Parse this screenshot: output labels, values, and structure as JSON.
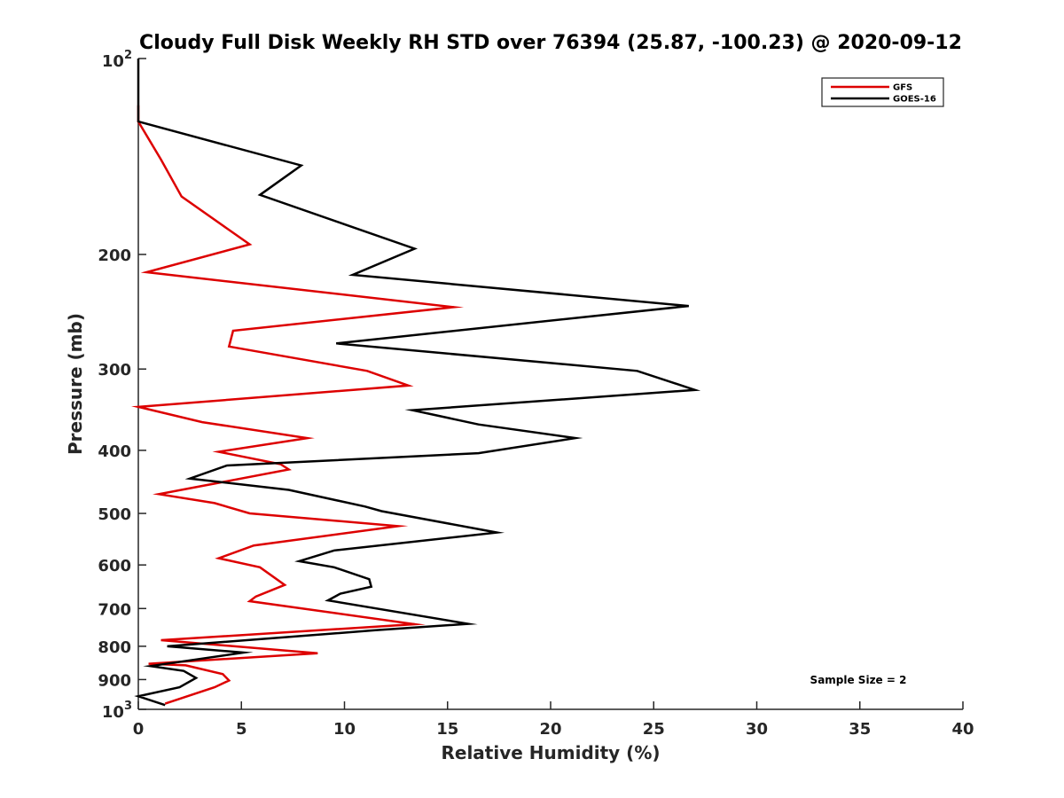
{
  "chart_data": {
    "type": "line",
    "title": "Cloudy Full Disk Weekly RH STD over 76394 (25.87, -100.23) @ 2020-09-12",
    "xlabel": "Relative Humidity (%)",
    "ylabel": "Pressure (mb)",
    "xlim": [
      0,
      40
    ],
    "ylim": [
      100,
      1000
    ],
    "yscale": "log",
    "y_reversed": true,
    "grid": false,
    "legend": "top-right",
    "x_ticks": [
      "0",
      "5",
      "10",
      "15",
      "20",
      "25",
      "30",
      "35",
      "40"
    ],
    "y_ticks": [
      "200",
      "300",
      "400",
      "500",
      "600",
      "700",
      "800",
      "900"
    ],
    "y_tick_values": [
      200,
      300,
      400,
      500,
      600,
      700,
      800,
      900
    ],
    "y_top_label": {
      "base": "10",
      "exp": "2"
    },
    "y_bottom_label": {
      "base": "10",
      "exp": "3"
    },
    "annotation": "Sample Size = 2",
    "series": [
      {
        "name": "GFS",
        "color": "#dd0000",
        "points": [
          [
            0,
            118
          ],
          [
            0,
            125
          ],
          [
            1.1,
            143
          ],
          [
            2.1,
            163
          ],
          [
            5.4,
            193
          ],
          [
            0.4,
            213
          ],
          [
            15.3,
            241
          ],
          [
            4.6,
            262
          ],
          [
            4.4,
            277
          ],
          [
            11.1,
            302
          ],
          [
            13.1,
            318
          ],
          [
            0,
            343
          ],
          [
            3.1,
            362
          ],
          [
            8.2,
            383
          ],
          [
            3.9,
            402
          ],
          [
            6.9,
            420
          ],
          [
            7.3,
            428
          ],
          [
            1.0,
            467
          ],
          [
            3.7,
            482
          ],
          [
            5.4,
            500
          ],
          [
            12.6,
            523
          ],
          [
            5.6,
            560
          ],
          [
            3.9,
            586
          ],
          [
            5.9,
            605
          ],
          [
            7.1,
            644
          ],
          [
            5.7,
            671
          ],
          [
            5.4,
            682
          ],
          [
            13.4,
            740
          ],
          [
            1.1,
            783
          ],
          [
            8.7,
            820
          ],
          [
            0.5,
            851
          ],
          [
            2.3,
            856
          ],
          [
            4.1,
            883
          ],
          [
            4.4,
            903
          ],
          [
            3.7,
            925
          ],
          [
            1.3,
            980
          ]
        ]
      },
      {
        "name": "GOES-16",
        "color": "#000000",
        "points": [
          [
            0,
            100
          ],
          [
            0,
            125
          ],
          [
            7.9,
            146
          ],
          [
            5.9,
            162
          ],
          [
            13.4,
            196
          ],
          [
            10.4,
            215
          ],
          [
            26.7,
            240
          ],
          [
            9.6,
            274
          ],
          [
            24.2,
            302
          ],
          [
            27.0,
            323
          ],
          [
            13.3,
            347
          ],
          [
            16.5,
            365
          ],
          [
            21.2,
            383
          ],
          [
            16.5,
            404
          ],
          [
            4.3,
            422
          ],
          [
            2.5,
            442
          ],
          [
            7.3,
            460
          ],
          [
            11.0,
            488
          ],
          [
            11.8,
            496
          ],
          [
            17.4,
            535
          ],
          [
            9.5,
            570
          ],
          [
            7.8,
            592
          ],
          [
            9.5,
            605
          ],
          [
            11.2,
            631
          ],
          [
            11.3,
            648
          ],
          [
            9.8,
            664
          ],
          [
            9.2,
            680
          ],
          [
            16.0,
            739
          ],
          [
            11.5,
            756
          ],
          [
            1.4,
            800
          ],
          [
            5.1,
            818
          ],
          [
            0.6,
            858
          ],
          [
            2.2,
            873
          ],
          [
            2.8,
            895
          ],
          [
            2.0,
            925
          ],
          [
            0,
            955
          ],
          [
            1.3,
            985
          ]
        ]
      }
    ]
  }
}
